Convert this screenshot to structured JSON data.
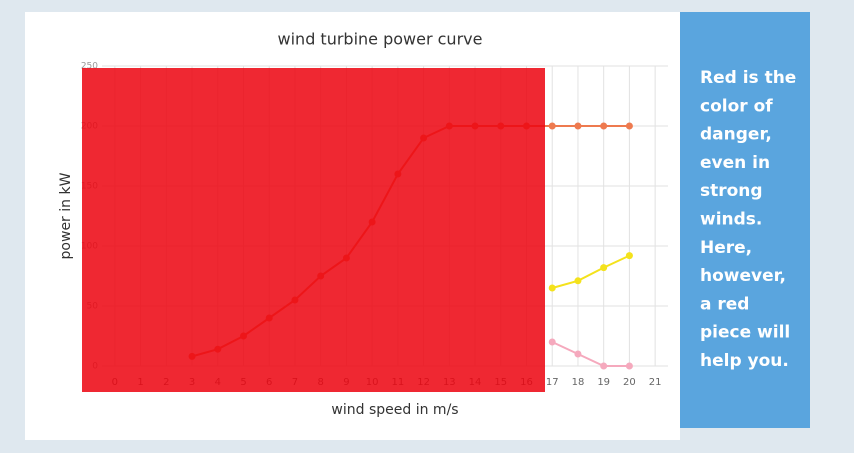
{
  "chart_data": {
    "type": "line",
    "title": "wind turbine power curve",
    "x_label": "wind speed in m/s",
    "y_label": "power in kW",
    "x": [
      3,
      4,
      5,
      6,
      7,
      8,
      9,
      10,
      11,
      12,
      13,
      14,
      15,
      16,
      17,
      18,
      19,
      20
    ],
    "series": [
      {
        "color": "#ee7a4f",
        "values": [
          8,
          14,
          25,
          40,
          55,
          75,
          90,
          120,
          160,
          190,
          200,
          200,
          200,
          200,
          200,
          200,
          200,
          200
        ]
      },
      {
        "color": "#f4e21c",
        "values": [
          null,
          null,
          null,
          null,
          null,
          null,
          null,
          null,
          null,
          null,
          null,
          null,
          null,
          null,
          65,
          71,
          82,
          92
        ]
      },
      {
        "color": "#f5a9bd",
        "values": [
          null,
          null,
          null,
          null,
          null,
          null,
          null,
          null,
          null,
          null,
          null,
          null,
          null,
          null,
          20,
          10,
          0,
          0
        ]
      }
    ],
    "xlim": [
      -0.5,
      21.5
    ],
    "xticks": [
      0,
      1,
      2,
      3,
      4,
      5,
      6,
      7,
      8,
      9,
      10,
      11,
      12,
      13,
      14,
      15,
      16,
      17,
      18,
      19,
      20,
      21
    ],
    "ylim": [
      0,
      250
    ],
    "yticks": [
      0,
      50,
      100,
      150,
      200,
      250
    ],
    "grid": true
  },
  "side_note": [
    "Red is the",
    "color of",
    "danger,",
    "even in",
    "strong",
    "winds.",
    "Here,",
    "however,",
    "a red",
    "piece will",
    "help you."
  ]
}
